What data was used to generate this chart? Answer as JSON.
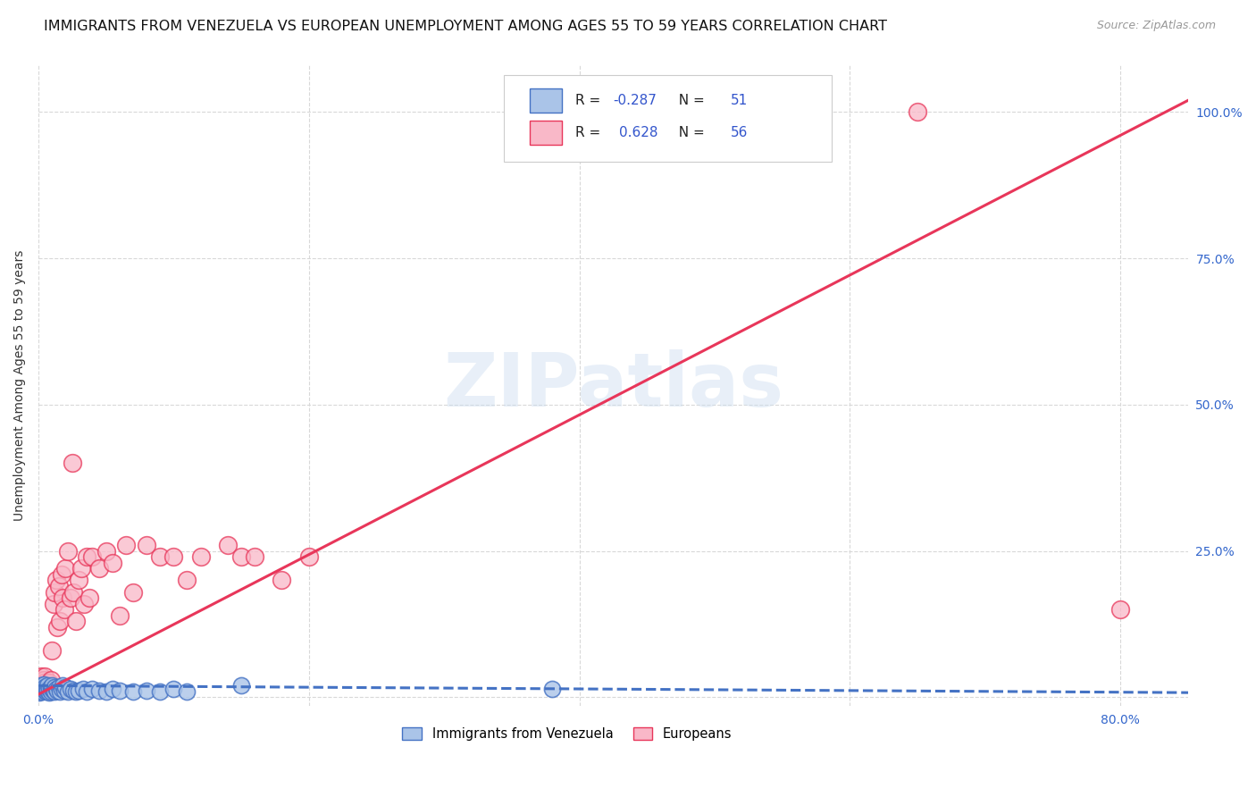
{
  "title": "IMMIGRANTS FROM VENEZUELA VS EUROPEAN UNEMPLOYMENT AMONG AGES 55 TO 59 YEARS CORRELATION CHART",
  "source": "Source: ZipAtlas.com",
  "ylabel": "Unemployment Among Ages 55 to 59 years",
  "xlim": [
    0.0,
    0.85
  ],
  "ylim": [
    -0.015,
    1.08
  ],
  "legend_label1": "Immigrants from Venezuela",
  "legend_label2": "Europeans",
  "r1": "-0.287",
  "n1": "51",
  "r2": "0.628",
  "n2": "56",
  "color_venezuela": "#aac4e8",
  "color_european": "#f9b8c8",
  "line_color_venezuela": "#4472c4",
  "line_color_european": "#e8365a",
  "watermark": "ZIPatlas",
  "background_color": "#ffffff",
  "grid_color": "#d8d8d8",
  "title_fontsize": 11.5,
  "axis_label_fontsize": 10,
  "tick_label_fontsize": 10,
  "venezuela_scatter_x": [
    0.0,
    0.001,
    0.001,
    0.002,
    0.002,
    0.003,
    0.003,
    0.004,
    0.004,
    0.005,
    0.005,
    0.006,
    0.006,
    0.007,
    0.007,
    0.008,
    0.008,
    0.009,
    0.009,
    0.01,
    0.01,
    0.011,
    0.012,
    0.012,
    0.013,
    0.014,
    0.015,
    0.016,
    0.017,
    0.018,
    0.019,
    0.02,
    0.022,
    0.024,
    0.026,
    0.028,
    0.03,
    0.033,
    0.036,
    0.04,
    0.045,
    0.05,
    0.055,
    0.06,
    0.07,
    0.08,
    0.09,
    0.1,
    0.11,
    0.15,
    0.38
  ],
  "venezuela_scatter_y": [
    0.01,
    0.015,
    0.008,
    0.012,
    0.02,
    0.018,
    0.01,
    0.015,
    0.022,
    0.012,
    0.018,
    0.01,
    0.015,
    0.02,
    0.012,
    0.008,
    0.015,
    0.018,
    0.01,
    0.015,
    0.02,
    0.012,
    0.018,
    0.01,
    0.015,
    0.012,
    0.018,
    0.01,
    0.015,
    0.02,
    0.012,
    0.018,
    0.01,
    0.015,
    0.012,
    0.01,
    0.012,
    0.015,
    0.01,
    0.015,
    0.012,
    0.01,
    0.015,
    0.012,
    0.01,
    0.012,
    0.01,
    0.015,
    0.01,
    0.02,
    0.015
  ],
  "european_scatter_x": [
    0.0,
    0.001,
    0.001,
    0.002,
    0.002,
    0.003,
    0.003,
    0.004,
    0.004,
    0.005,
    0.005,
    0.006,
    0.007,
    0.008,
    0.009,
    0.01,
    0.011,
    0.012,
    0.013,
    0.014,
    0.015,
    0.016,
    0.017,
    0.018,
    0.019,
    0.02,
    0.022,
    0.024,
    0.025,
    0.026,
    0.028,
    0.03,
    0.032,
    0.034,
    0.036,
    0.038,
    0.04,
    0.045,
    0.05,
    0.055,
    0.06,
    0.065,
    0.07,
    0.08,
    0.09,
    0.1,
    0.11,
    0.12,
    0.14,
    0.15,
    0.16,
    0.18,
    0.2,
    0.54,
    0.65,
    0.8
  ],
  "european_scatter_y": [
    0.025,
    0.03,
    0.015,
    0.02,
    0.035,
    0.025,
    0.015,
    0.02,
    0.03,
    0.025,
    0.035,
    0.015,
    0.02,
    0.025,
    0.03,
    0.08,
    0.16,
    0.18,
    0.2,
    0.12,
    0.19,
    0.13,
    0.21,
    0.17,
    0.15,
    0.22,
    0.25,
    0.17,
    0.4,
    0.18,
    0.13,
    0.2,
    0.22,
    0.16,
    0.24,
    0.17,
    0.24,
    0.22,
    0.25,
    0.23,
    0.14,
    0.26,
    0.18,
    0.26,
    0.24,
    0.24,
    0.2,
    0.24,
    0.26,
    0.24,
    0.24,
    0.2,
    0.24,
    1.0,
    1.0,
    0.15
  ],
  "v_trend_x": [
    0.0,
    0.85
  ],
  "v_trend_y": [
    0.02,
    0.008
  ],
  "e_trend_x": [
    0.0,
    0.85
  ],
  "e_trend_y": [
    0.005,
    1.02
  ]
}
